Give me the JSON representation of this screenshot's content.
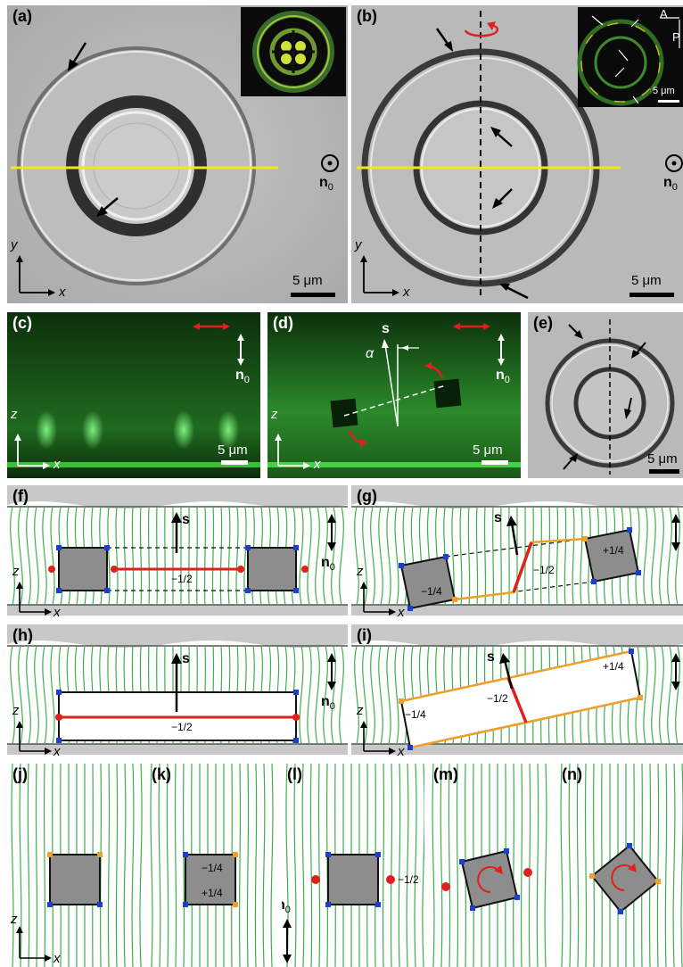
{
  "panels": {
    "a": "(a)",
    "b": "(b)",
    "c": "(c)",
    "d": "(d)",
    "e": "(e)",
    "f": "(f)",
    "g": "(g)",
    "h": "(h)",
    "i": "(i)",
    "j": "(j)",
    "k": "(k)",
    "l": "(l)",
    "m": "(m)",
    "n": "(n)"
  },
  "scale_label": "5 μm",
  "axis": {
    "x": "x",
    "y": "y",
    "z": "z"
  },
  "director": "n",
  "director_sub": "0",
  "vector_s": "s",
  "alpha": "α",
  "polarizer": "P",
  "analyzer": "A",
  "defects": {
    "minus_half": "−1/2",
    "minus_quarter": "−1/4",
    "plus_quarter": "+1/4"
  },
  "colors": {
    "defect_line": "#e0201c",
    "quarter_line": "#f0a02a",
    "field_line": "#3db04a",
    "yellow_line": "#f2e51c"
  }
}
